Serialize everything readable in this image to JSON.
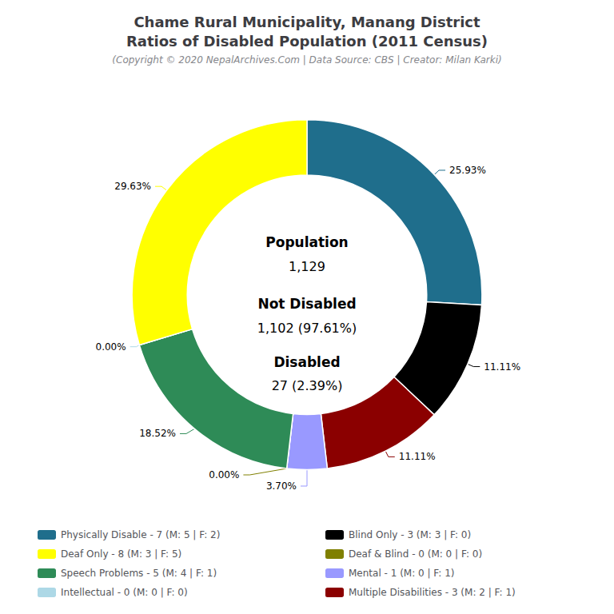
{
  "chart_data": {
    "type": "pie",
    "title": [
      "Chame Rural Municipality, Manang District",
      "Ratios of Disabled Population (2011 Census)"
    ],
    "subtitle": "(Copyright © 2020 NepalArchives.Com | Data Source: CBS | Creator: Milan Karki)",
    "categories": [
      "Physically Disable - 7 (M: 5 | F: 2)",
      "Blind Only - 3 (M: 3 | F: 0)",
      "Multiple Disabilities - 3 (M: 2 | F: 1)",
      "Mental - 1 (M: 0 | F: 1)",
      "Deaf & Blind - 0 (M: 0 | F: 0)",
      "Speech Problems - 5 (M: 4 | F: 1)",
      "Intellectual - 0 (M: 0 | F: 0)",
      "Deaf Only - 8 (M: 3 | F: 5)"
    ],
    "values": [
      25.93,
      11.11,
      11.11,
      3.7,
      0.0,
      18.52,
      0.0,
      29.63
    ],
    "value_labels": [
      "25.93%",
      "11.11%",
      "11.11%",
      "3.70%",
      "0.00%",
      "18.52%",
      "0.00%",
      "29.63%"
    ],
    "colors": [
      "#1F6E8C",
      "#000000",
      "#8B0000",
      "#9999FF",
      "#808000",
      "#2E8B57",
      "#ADD8E6",
      "#FFFF00"
    ],
    "data_labels": true,
    "legend": "bottom",
    "legend_columns": [
      [
        "Physically Disable - 7 (M: 5 | F: 2)",
        "Deaf Only - 8 (M: 3 | F: 5)",
        "Speech Problems - 5 (M: 4 | F: 1)",
        "Intellectual - 0 (M: 0 | F: 0)"
      ],
      [
        "Blind Only - 3 (M: 3 | F: 0)",
        "Deaf & Blind - 0 (M: 0 | F: 0)",
        "Mental - 1 (M: 0 | F: 1)",
        "Multiple Disabilities - 3 (M: 2 | F: 1)"
      ]
    ],
    "annotations": [
      "Population",
      "1,129",
      "Not Disabled",
      "1,102 (97.61%)",
      "Disabled",
      "27 (2.39%)"
    ]
  }
}
